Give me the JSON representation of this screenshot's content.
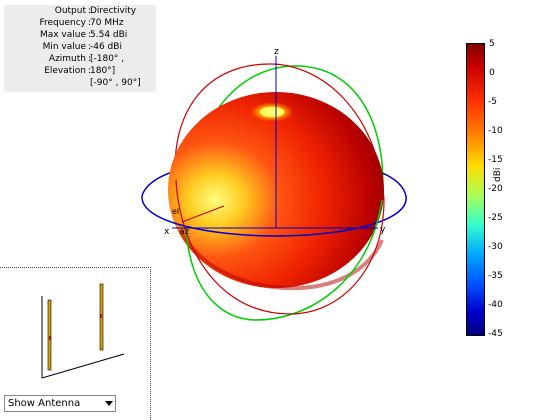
{
  "info": {
    "rows": [
      {
        "key": "Output",
        "value": "Directivity"
      },
      {
        "key": "Frequency",
        "value": "70 MHz"
      },
      {
        "key": "Max value",
        "value": "5.54 dBi"
      },
      {
        "key": "Min value",
        "value": "-46 dBi"
      },
      {
        "key": "Azimuth",
        "value": "[-180° ,"
      },
      {
        "key": "Elevation",
        "value": "180°]"
      }
    ],
    "continuation": "[-90° , 90°]"
  },
  "axes": {
    "x": "x",
    "y": "y",
    "z": "z",
    "az": "az",
    "el": "el"
  },
  "colorbar": {
    "unit": "dBi",
    "max": 5,
    "min": -45,
    "ticks": [
      "5",
      "0",
      "-5",
      "-10",
      "-15",
      "-20",
      "-25",
      "-30",
      "-35",
      "-40",
      "-45"
    ]
  },
  "antenna_panel": {
    "selected": "Show Antenna"
  },
  "colors": {
    "elevation_circle": "#00cc00",
    "azimuth_circle": "#0000cc",
    "theta_circle": "#cc0000",
    "pattern_high": "#ffff66",
    "pattern_low": "#8b0000"
  }
}
